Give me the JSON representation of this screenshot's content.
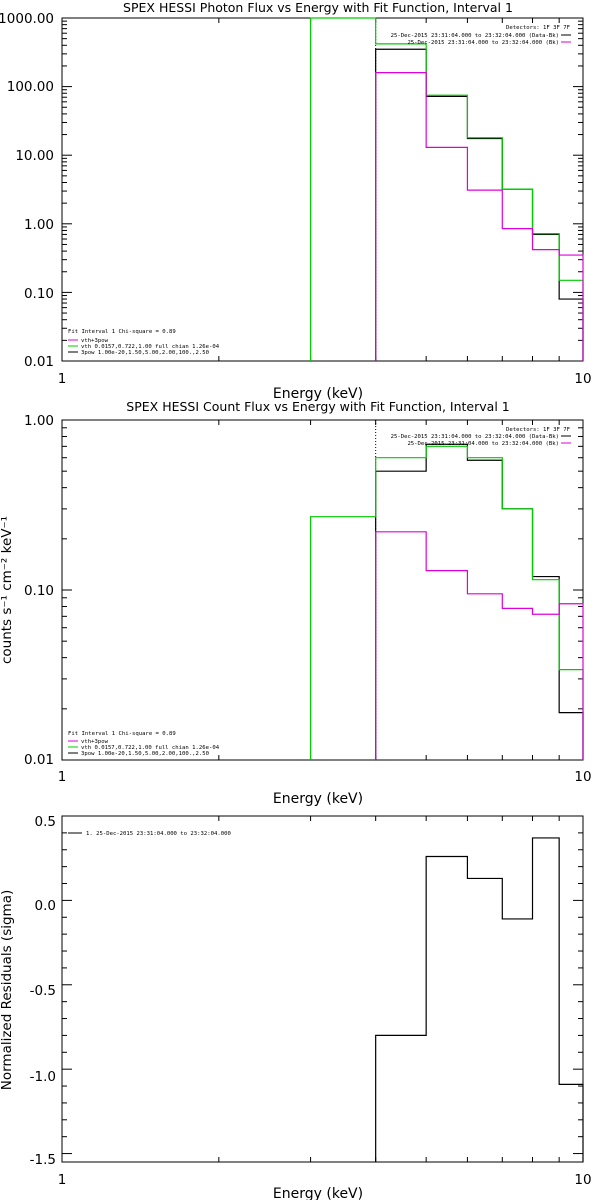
{
  "colors": {
    "black": "#000000",
    "green": "#00cc00",
    "magenta": "#dd00dd",
    "axis": "#000000"
  },
  "chart_data": [
    {
      "type": "line",
      "title": "SPEX HESSI Photon Flux vs Energy with Fit Function, Interval 1",
      "xlabel": "Energy (keV)",
      "ylabel": "",
      "x_scale": "log",
      "y_scale": "log",
      "xlim": [
        1,
        10
      ],
      "ylim": [
        0.01,
        1000
      ],
      "x_tick_labels": [
        "1",
        "10"
      ],
      "y_tick_labels": [
        "1000.00",
        "100.00",
        "10.00",
        "1.00",
        "0.10",
        "0.01"
      ],
      "grid": false,
      "legend_position": "top-right",
      "detectors_label": "Detectors: 1F 3F 7F",
      "legend": [
        {
          "label": "25-Dec-2015 23:31:04.000 to 23:32:04.000 (Data-Bk)",
          "color": "black"
        },
        {
          "label": "25-Dec-2015 23:31:04.000 to 23:32:04.000 (Bk)",
          "color": "magenta"
        }
      ],
      "fit_legend": {
        "line1": "Fit Interval 1   Chi-square = 0.89",
        "entries": [
          {
            "label": "vth+3pow",
            "color": "magenta"
          },
          {
            "label": "vth 0.0157,0.722,1.00  full chian 1.26e-04",
            "color": "green"
          },
          {
            "label": "3pow 1.00e-20,1.50,5.00,2.00,100.,2.50",
            "color": "black"
          }
        ]
      },
      "marker_x": 4.0,
      "series": [
        {
          "color": "black",
          "edges": [
            4,
            5,
            6,
            7,
            8,
            9,
            10
          ],
          "values": [
            350,
            72,
            17.5,
            3.2,
            0.7,
            0.08
          ]
        },
        {
          "color": "green",
          "edges": [
            3,
            4,
            5,
            6,
            7,
            8,
            9,
            10
          ],
          "values": [
            1000,
            420,
            75,
            18,
            3.2,
            0.72,
            0.15
          ]
        },
        {
          "color": "magenta",
          "edges": [
            4,
            5,
            6,
            7,
            8,
            9,
            10
          ],
          "values": [
            160,
            13,
            3.1,
            0.85,
            0.42,
            0.35
          ]
        }
      ]
    },
    {
      "type": "line",
      "title": "SPEX HESSI Count Flux vs Energy with Fit Function, Interval 1",
      "xlabel": "Energy (keV)",
      "ylabel": "counts s⁻¹ cm⁻² keV⁻¹",
      "x_scale": "log",
      "y_scale": "log",
      "xlim": [
        1,
        10
      ],
      "ylim": [
        0.01,
        1.0
      ],
      "x_tick_labels": [
        "1",
        "10"
      ],
      "y_tick_labels": [
        "1.00",
        "0.10",
        "0.01"
      ],
      "grid": false,
      "legend_position": "top-right",
      "detectors_label": "Detectors: 1F 3F 7F",
      "legend": [
        {
          "label": "25-Dec-2015 23:31:04.000 to 23:32:04.000 (Data-Bk)",
          "color": "black"
        },
        {
          "label": "25-Dec-2015 23:31:04.000 to 23:32:04.000 (Bk)",
          "color": "magenta"
        }
      ],
      "fit_legend": {
        "line1": "Fit Interval 1   Chi-square = 0.89",
        "entries": [
          {
            "label": "vth+3pow",
            "color": "magenta"
          },
          {
            "label": "vth 0.0157,0.722,1.00  full chian 1.26e-04",
            "color": "green"
          },
          {
            "label": "3pow 1.00e-20,1.50,5.00,2.00,100.,2.50",
            "color": "black"
          }
        ]
      },
      "marker_x": 4.0,
      "series": [
        {
          "color": "black",
          "edges": [
            4,
            5,
            6,
            7,
            8,
            9,
            10
          ],
          "values": [
            0.5,
            0.72,
            0.58,
            0.3,
            0.12,
            0.019
          ]
        },
        {
          "color": "green",
          "edges": [
            3,
            4,
            5,
            6,
            7,
            8,
            9,
            10
          ],
          "values": [
            0.27,
            0.6,
            0.7,
            0.6,
            0.3,
            0.115,
            0.034
          ]
        },
        {
          "color": "magenta",
          "edges": [
            4,
            5,
            6,
            7,
            8,
            9,
            10
          ],
          "values": [
            0.22,
            0.13,
            0.095,
            0.078,
            0.072,
            0.083
          ]
        }
      ]
    },
    {
      "type": "line",
      "title": "",
      "xlabel": "Energy (keV)",
      "ylabel": "Normalized Residuals (sigma)",
      "x_scale": "log",
      "y_scale": "linear",
      "xlim": [
        1,
        10
      ],
      "ylim": [
        -1.55,
        0.5
      ],
      "x_tick_labels": [
        "1",
        "10"
      ],
      "y_tick_labels": [
        "0.5",
        "0.0",
        "-0.5",
        "-1.0",
        "-1.5"
      ],
      "grid": false,
      "legend_position": "top-left",
      "legend": [
        {
          "label": "1. 25-Dec-2015 23:31:04.000 to 23:32:04.000",
          "color": "black"
        }
      ],
      "series": [
        {
          "color": "black",
          "edges": [
            4,
            5,
            6,
            7,
            8,
            9,
            10
          ],
          "values": [
            -0.8,
            0.26,
            0.13,
            -0.11,
            0.37,
            -1.09
          ]
        }
      ]
    }
  ]
}
